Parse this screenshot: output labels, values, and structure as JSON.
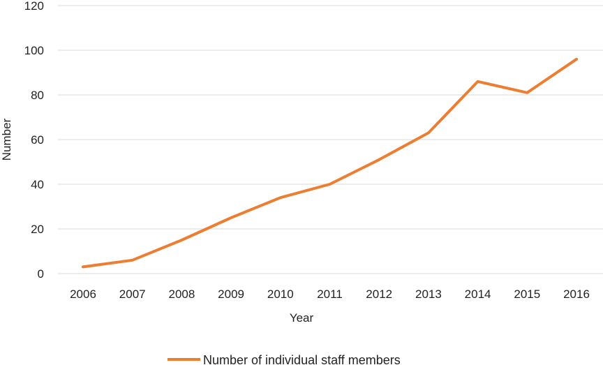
{
  "chart_data": {
    "type": "line",
    "title": "",
    "xlabel": "Year",
    "ylabel": "Number",
    "categories": [
      "2006",
      "2007",
      "2008",
      "2009",
      "2010",
      "2011",
      "2012",
      "2013",
      "2014",
      "2015",
      "2016"
    ],
    "series": [
      {
        "name": "Number of individual staff members",
        "values": [
          3,
          6,
          15,
          25,
          34,
          40,
          51,
          63,
          86,
          81,
          96
        ],
        "color": "#ED7D31"
      }
    ],
    "ylim": [
      0,
      120
    ],
    "yticks": [
      0,
      20,
      40,
      60,
      80,
      100,
      120
    ],
    "grid": "horizontal",
    "legend": "bottom-center"
  }
}
